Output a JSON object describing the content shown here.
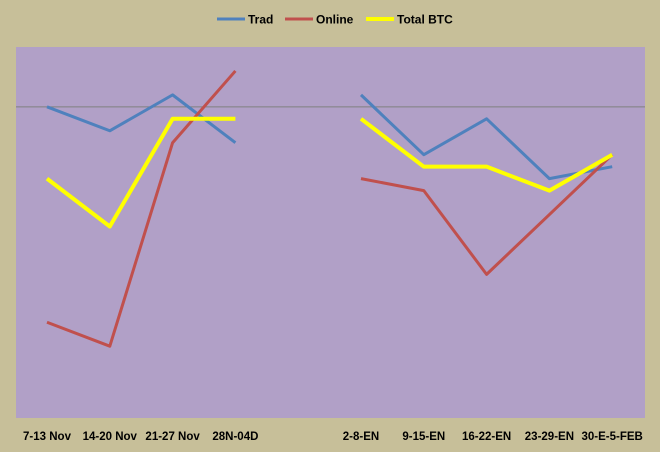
{
  "chart_data": {
    "type": "line",
    "title": "",
    "xlabel": "",
    "ylabel": "",
    "categories": [
      "7-13 Nov",
      "14-20 Nov",
      "21-27 Nov",
      "28N-04D",
      "",
      "2-8-EN",
      "9-15-EN",
      "16-22-EN",
      "23-29-EN",
      "30-E-5-FEB"
    ],
    "ylim": [
      -260,
      50
    ],
    "reference_line": 0,
    "grid": false,
    "legend_position": "top",
    "series": [
      {
        "name": "Trad",
        "color": "#4f81bd",
        "values": [
          0,
          -20,
          10,
          -30,
          null,
          10,
          -40,
          -10,
          -60,
          -50
        ]
      },
      {
        "name": "Online",
        "color": "#c0504d",
        "values": [
          -180,
          -200,
          -30,
          30,
          null,
          -60,
          -70,
          -140,
          -90,
          -40
        ]
      },
      {
        "name": "Total BTC",
        "color": "#ffff00",
        "values": [
          -60,
          -100,
          -10,
          -10,
          null,
          -10,
          -50,
          -50,
          -70,
          -40
        ]
      }
    ],
    "colors": {
      "background": "#c7bf99",
      "plot_area": "#b1a0c7",
      "reference_line": "#7f7f7f"
    }
  }
}
